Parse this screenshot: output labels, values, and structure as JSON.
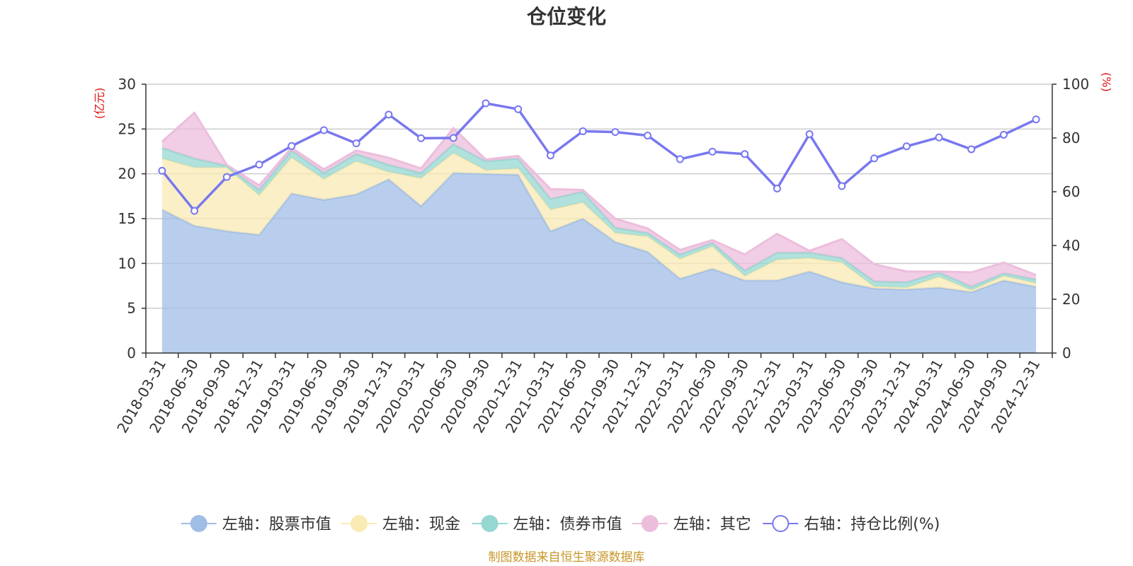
{
  "chart_data": {
    "type": "area",
    "title": "仓位变化",
    "left_unit": "(亿元)",
    "right_unit": "(%)",
    "source": "制图数据来自恒生聚源数据库",
    "colors": {
      "stock": "#a0bde6",
      "cash": "#faeab4",
      "bond": "#96d7d2",
      "other": "#ecbedc",
      "ratio": "#7878f0"
    },
    "left_axis": {
      "min": 0,
      "max": 30,
      "ticks": [
        0,
        5,
        10,
        15,
        20,
        25,
        30
      ]
    },
    "right_axis": {
      "min": 0,
      "max": 100,
      "ticks": [
        0,
        20,
        40,
        60,
        80,
        100
      ]
    },
    "categories": [
      "2018-03-31",
      "2018-06-30",
      "2018-09-30",
      "2018-12-31",
      "2019-03-31",
      "2019-06-30",
      "2019-09-30",
      "2019-12-31",
      "2020-03-31",
      "2020-06-30",
      "2020-09-30",
      "2020-12-31",
      "2021-03-31",
      "2021-06-30",
      "2021-09-30",
      "2021-12-31",
      "2022-03-31",
      "2022-06-30",
      "2022-09-30",
      "2022-12-31",
      "2023-03-31",
      "2023-06-30",
      "2023-09-30",
      "2023-12-31",
      "2024-03-31",
      "2024-06-30",
      "2024-09-30",
      "2024-12-31"
    ],
    "stacked_series": [
      {
        "key": "stock",
        "name": "左轴：股票市值",
        "values": [
          16.0,
          14.2,
          13.6,
          13.2,
          17.8,
          17.1,
          17.7,
          19.4,
          16.4,
          20.1,
          20.0,
          19.9,
          13.6,
          15.0,
          12.4,
          11.3,
          8.3,
          9.4,
          8.1,
          8.1,
          9.1,
          7.9,
          7.2,
          7.1,
          7.3,
          6.8,
          8.1,
          7.4
        ]
      },
      {
        "key": "cash",
        "name": "左轴：现金",
        "values": [
          5.7,
          6.5,
          7.1,
          4.4,
          4.0,
          2.3,
          3.7,
          0.8,
          3.1,
          2.2,
          0.4,
          0.7,
          2.4,
          1.8,
          1.0,
          1.7,
          2.2,
          2.5,
          0.5,
          2.3,
          1.5,
          2.2,
          0.2,
          0.2,
          1.2,
          0.2,
          0.5,
          0.4
        ]
      },
      {
        "key": "bond",
        "name": "左轴：债券市值",
        "values": [
          1.2,
          1.0,
          0.2,
          0.6,
          0.8,
          0.7,
          0.8,
          0.8,
          0.6,
          1.0,
          1.0,
          1.1,
          1.2,
          1.2,
          0.6,
          0.4,
          0.5,
          0.4,
          0.6,
          0.8,
          0.6,
          0.5,
          0.6,
          0.6,
          0.5,
          0.4,
          0.3,
          0.4
        ]
      },
      {
        "key": "other",
        "name": "左轴：其它",
        "values": [
          0.7,
          5.1,
          0.1,
          0.5,
          0.3,
          0.4,
          0.4,
          0.8,
          0.5,
          1.8,
          0.2,
          0.3,
          1.1,
          0.2,
          1.0,
          0.5,
          0.5,
          0.3,
          1.8,
          2.1,
          0.2,
          2.1,
          1.9,
          1.2,
          0.1,
          1.6,
          1.2,
          0.5
        ]
      }
    ],
    "line_series": {
      "key": "ratio",
      "name": "右轴：持仓比例(%)",
      "values": [
        67.8,
        52.9,
        65.5,
        70.1,
        77.0,
        82.9,
        78.0,
        88.7,
        79.9,
        80.0,
        92.9,
        90.7,
        73.5,
        82.5,
        82.2,
        80.9,
        72.1,
        74.9,
        74.0,
        61.2,
        81.4,
        62.1,
        72.4,
        76.9,
        80.2,
        75.8,
        81.2,
        86.9
      ]
    }
  }
}
